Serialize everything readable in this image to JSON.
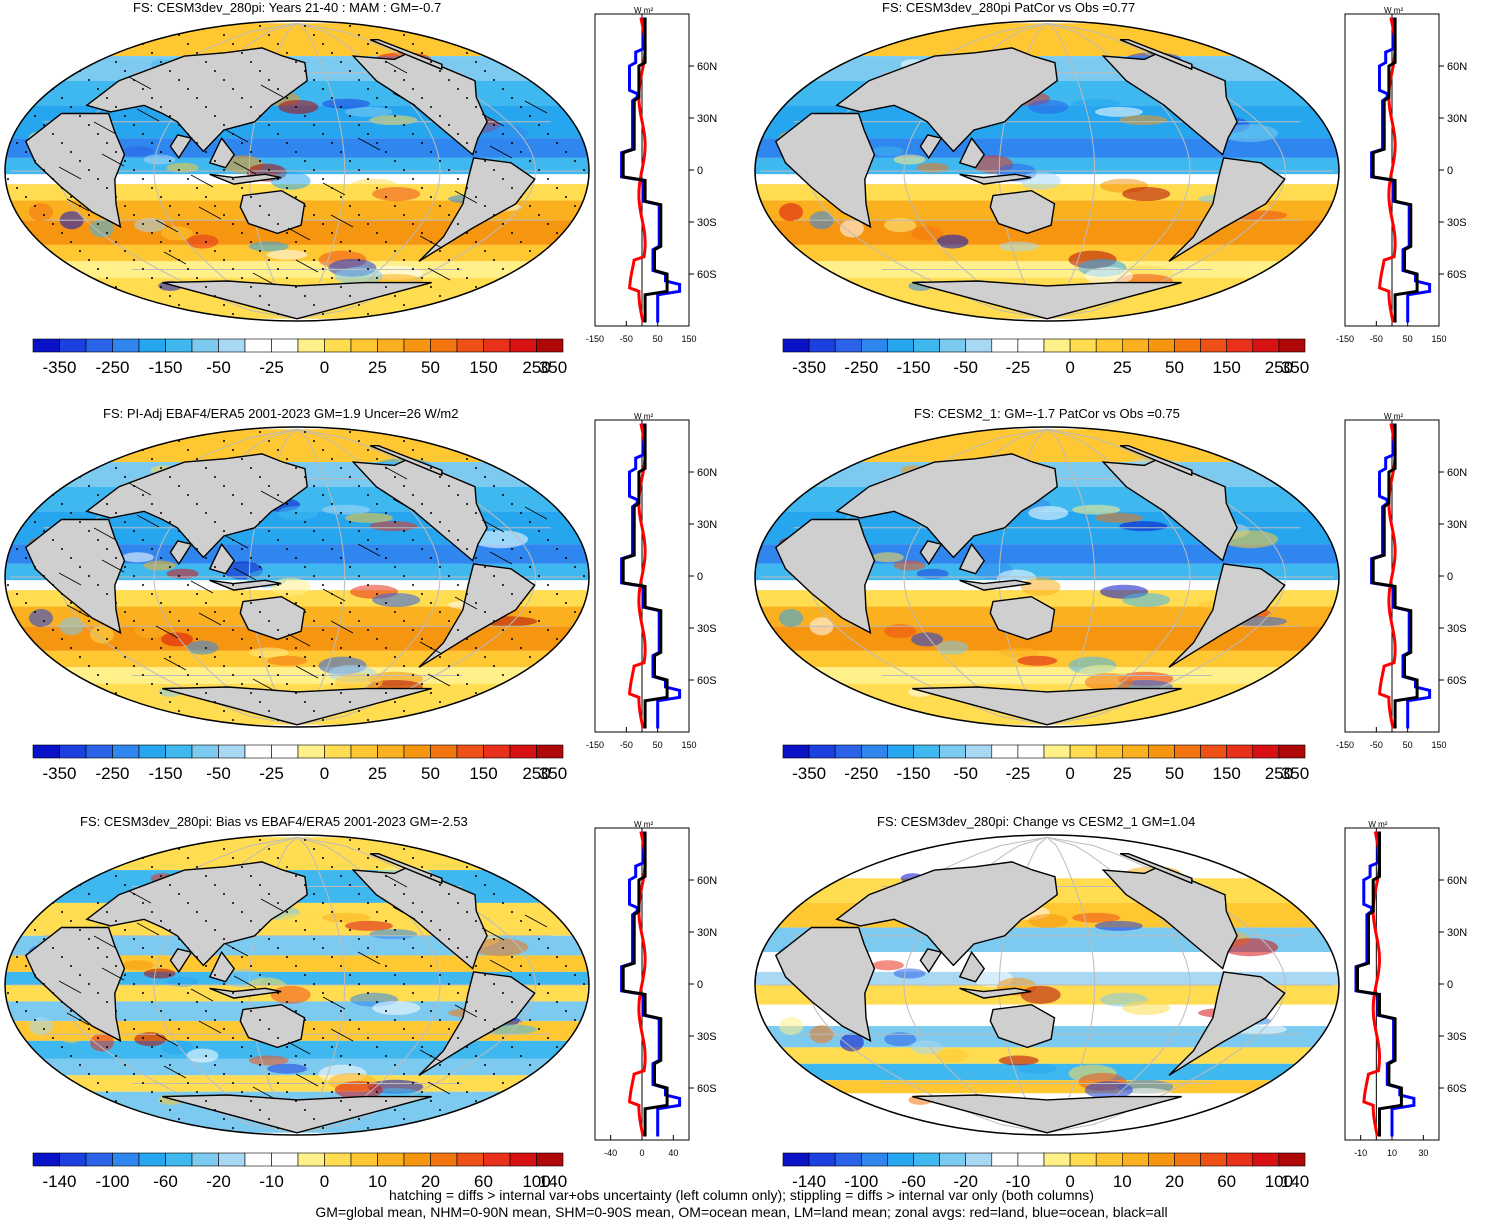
{
  "panels": [
    {
      "id": "p1",
      "title": "FS: CESM3dev_280pi: Years 21-40 : MAM : GM=-0.7",
      "scale": "a",
      "pattern": "a",
      "stipple": true,
      "hatch": true,
      "profile_ticks": [
        "-150",
        "-50",
        "50",
        "150"
      ],
      "profile_range": [
        -150,
        150
      ],
      "lat_labels": [
        "60N",
        "30N",
        "0",
        "30S",
        "60S"
      ],
      "units": "W m²"
    },
    {
      "id": "p2",
      "title": "FS: CESM3dev_280pi PatCor vs Obs =0.77",
      "scale": "a",
      "pattern": "a",
      "stipple": false,
      "hatch": false,
      "profile_ticks": [
        "-150",
        "-50",
        "50",
        "150"
      ],
      "profile_range": [
        -150,
        150
      ],
      "lat_labels": [
        "60N",
        "30N",
        "0",
        "30S",
        "60S"
      ],
      "units": "W m²"
    },
    {
      "id": "p3",
      "title": "FS: PI-Adj EBAF4/ERA5 2001-2023 GM=1.9 Uncer=26 W/m2",
      "scale": "a",
      "pattern": "a",
      "stipple": true,
      "hatch": true,
      "profile_ticks": [
        "-150",
        "-50",
        "50",
        "150"
      ],
      "profile_range": [
        -150,
        150
      ],
      "lat_labels": [
        "60N",
        "30N",
        "0",
        "30S",
        "60S"
      ],
      "units": "W m²"
    },
    {
      "id": "p4",
      "title": "FS: CESM2_1: GM=-1.7 PatCor vs Obs =0.75",
      "scale": "a",
      "pattern": "a",
      "stipple": false,
      "hatch": false,
      "profile_ticks": [
        "-150",
        "-50",
        "50",
        "150"
      ],
      "profile_range": [
        -150,
        150
      ],
      "lat_labels": [
        "60N",
        "30N",
        "0",
        "30S",
        "60S"
      ],
      "units": "W m²"
    },
    {
      "id": "p5",
      "title": "FS: CESM3dev_280pi: Bias vs EBAF4/ERA5 2001-2023 GM=-2.53",
      "scale": "b",
      "pattern": "b",
      "stipple": true,
      "hatch": true,
      "profile_ticks": [
        "-40",
        "0",
        "40"
      ],
      "profile_range": [
        -60,
        60
      ],
      "lat_labels": [
        "60N",
        "30N",
        "0",
        "30S",
        "60S"
      ],
      "units": "W m²"
    },
    {
      "id": "p6",
      "title": "FS: CESM3dev_280pi: Change vs CESM2_1 GM=1.04",
      "scale": "b",
      "pattern": "c",
      "stipple": false,
      "hatch": false,
      "profile_ticks": [
        "-10",
        "10",
        "30"
      ],
      "profile_range": [
        -20,
        40
      ],
      "lat_labels": [
        "60N",
        "30N",
        "0",
        "30S",
        "60S"
      ],
      "units": "W m²"
    }
  ],
  "colorbars": {
    "a": {
      "labels": [
        "-350",
        "-250",
        "-150",
        "-50",
        "-25",
        "0",
        "25",
        "50",
        "150",
        "250",
        "350"
      ]
    },
    "b": {
      "labels": [
        "-140",
        "-100",
        "-60",
        "-20",
        "-10",
        "0",
        "10",
        "20",
        "60",
        "100",
        "140"
      ]
    }
  },
  "palette": [
    "#0a12c8",
    "#1c3fe0",
    "#2a63e8",
    "#2f86ee",
    "#27a6f0",
    "#3fb8f0",
    "#7ccaf0",
    "#a8d8f4",
    "#ffffff",
    "#ffffff",
    "#fff08a",
    "#ffdc50",
    "#ffc832",
    "#fbb020",
    "#f59510",
    "#f27510",
    "#ee5018",
    "#e8301a",
    "#d81212",
    "#b00808"
  ],
  "map_style": {
    "land": "#cfcfcf",
    "grid": "#bcbcbc"
  },
  "profile_colors": {
    "land": "#ff0000",
    "ocean": "#0000ff",
    "all": "#000000"
  },
  "footer": {
    "line1": "hatching = diffs > internal var+obs uncertainty (left column only); stippling = diffs > internal var only (both columns)",
    "line2": "GM=global mean, NHM=0-90N mean, SHM=0-90S mean, OM=ocean mean, LM=land mean; zonal avgs: red=land, blue=ocean, black=all"
  }
}
